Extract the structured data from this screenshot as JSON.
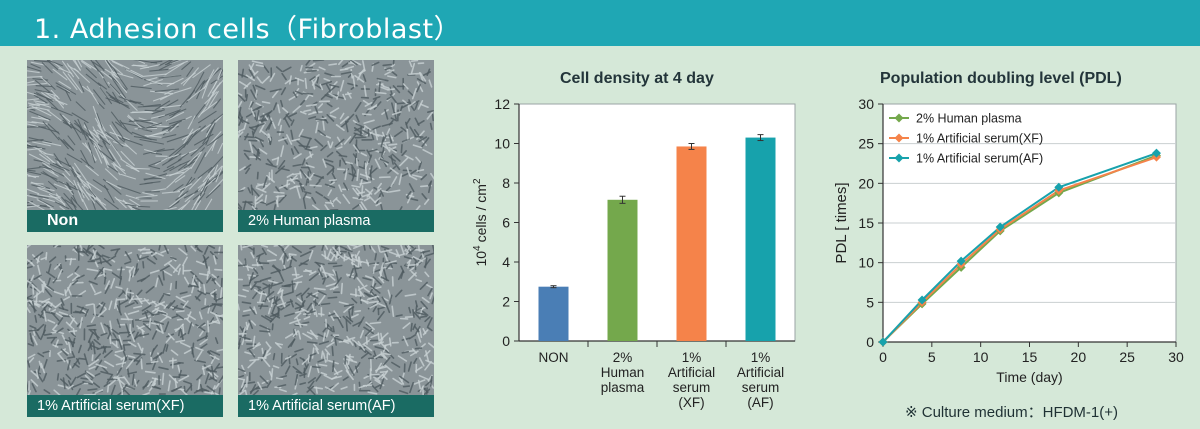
{
  "header": {
    "title": "1. Adhesion cells（Fibroblast）"
  },
  "photos": [
    {
      "caption": "Non",
      "density": 0.55
    },
    {
      "caption": "2% Human plasma",
      "density": 0.75
    },
    {
      "caption": "1% Artificial serum(XF)",
      "density": 0.9
    },
    {
      "caption": "1% Artificial serum(AF)",
      "density": 0.92
    }
  ],
  "chart_data": [
    {
      "type": "bar",
      "title": "Cell density at 4 day",
      "ylabel_base": "10",
      "ylabel_exp": "4",
      "ylabel_rest": "cells / cm",
      "ylabel_sup": "2",
      "ylim": [
        0,
        12
      ],
      "yticks": [
        "0",
        "2",
        "4",
        "6",
        "8",
        "10",
        "12"
      ],
      "grid": false,
      "categories": [
        {
          "lines": [
            "NON"
          ]
        },
        {
          "lines": [
            "2%",
            "Human",
            "plasma"
          ]
        },
        {
          "lines": [
            "1%",
            "Artificial",
            "serum",
            "(XF)"
          ]
        },
        {
          "lines": [
            "1%",
            "Artificial",
            "serum",
            "(AF)"
          ]
        }
      ],
      "values": [
        2.75,
        7.15,
        9.85,
        10.3
      ],
      "errors": [
        0.05,
        0.18,
        0.15,
        0.15
      ],
      "colors": [
        "#4a7eb5",
        "#74a84c",
        "#f5834a",
        "#17a2ac"
      ]
    },
    {
      "type": "line",
      "title": "Population doubling level (PDL)",
      "xlabel": "Time (day)",
      "ylabel": "PDL [ times]",
      "xlim": [
        0,
        30
      ],
      "ylim": [
        0,
        30
      ],
      "xticks": [
        "0",
        "5",
        "10",
        "15",
        "20",
        "25",
        "30"
      ],
      "yticks": [
        "0",
        "5",
        "10",
        "15",
        "20",
        "25",
        "30"
      ],
      "grid": true,
      "legend_position": "top-left",
      "x": [
        0,
        4,
        8,
        12,
        18,
        28
      ],
      "series": [
        {
          "name": "2% Human plasma",
          "color": "#74a84c",
          "values": [
            0,
            4.8,
            9.4,
            14.0,
            18.8,
            23.5
          ]
        },
        {
          "name": "1% Artificial serum(XF)",
          "color": "#f5834a",
          "values": [
            0,
            5.0,
            9.8,
            14.2,
            19.1,
            23.3
          ]
        },
        {
          "name": "1% Artificial serum(AF)",
          "color": "#17a2ac",
          "values": [
            0,
            5.3,
            10.2,
            14.5,
            19.5,
            23.8
          ]
        }
      ]
    }
  ],
  "footnote": "※ Culture medium：HFDM-1(+)"
}
